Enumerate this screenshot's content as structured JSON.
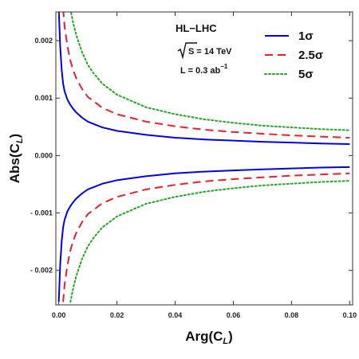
{
  "chart_data": {
    "type": "line",
    "title": "",
    "xlabel": "Arg(C",
    "xlabel_sub": "L",
    "xlabel_close": ")",
    "ylabel": "Abs(C",
    "ylabel_sub": "L",
    "ylabel_close": ")",
    "xlim": [
      -0.001,
      0.101
    ],
    "ylim": [
      -0.0026,
      0.0025
    ],
    "xticks": [
      0.0,
      0.02,
      0.04,
      0.06,
      0.08,
      0.1
    ],
    "xtick_labels": [
      "0.00",
      "0.02",
      "0.04",
      "0.06",
      "0.08",
      "0.10"
    ],
    "yticks": [
      0.002,
      0.001,
      0.0,
      -0.001,
      -0.002
    ],
    "ytick_labels": [
      "0.002",
      "0.001",
      "0.000",
      "- 0.001",
      "- 0.002"
    ],
    "grid": false,
    "legend_position": "top-right",
    "annotation": {
      "title": "HL−LHC",
      "energy_prefix": "S = 14 TeV",
      "lumi": "L = 0.3 ab",
      "lumi_exp": "−1"
    },
    "series": [
      {
        "name": "1σ",
        "color": "#0000ee",
        "dash": "solid",
        "x": [
          0.0,
          0.0005,
          0.001,
          0.0015,
          0.002,
          0.003,
          0.004,
          0.005,
          0.006,
          0.008,
          0.01,
          0.015,
          0.02,
          0.03,
          0.04,
          0.05,
          0.06,
          0.07,
          0.08,
          0.09,
          0.1
        ],
        "upper": [
          0.00255,
          0.0019,
          0.0015,
          0.00125,
          0.00112,
          0.00097,
          0.00088,
          0.00081,
          0.00075,
          0.00066,
          0.00059,
          0.00049,
          0.00043,
          0.00036,
          0.00031,
          0.00028,
          0.00026,
          0.00024,
          0.000225,
          0.00021,
          0.0002
        ],
        "lower": [
          -0.00255,
          -0.0019,
          -0.0015,
          -0.00125,
          -0.00112,
          -0.00097,
          -0.00088,
          -0.00081,
          -0.00075,
          -0.00066,
          -0.00059,
          -0.00049,
          -0.00043,
          -0.00036,
          -0.00031,
          -0.00028,
          -0.00026,
          -0.00024,
          -0.000225,
          -0.00021,
          -0.0002
        ]
      },
      {
        "name": "2.5σ",
        "color": "#e8202a",
        "dash": "dashed",
        "x": [
          0.0015,
          0.002,
          0.003,
          0.004,
          0.005,
          0.006,
          0.008,
          0.01,
          0.015,
          0.02,
          0.03,
          0.04,
          0.05,
          0.06,
          0.07,
          0.08,
          0.09,
          0.1
        ],
        "upper": [
          0.00255,
          0.00225,
          0.0019,
          0.00165,
          0.00148,
          0.00135,
          0.00116,
          0.00102,
          0.00083,
          0.00072,
          0.00059,
          0.00051,
          0.00045,
          0.00041,
          0.00038,
          0.00035,
          0.00033,
          0.00031
        ],
        "lower": [
          -0.00255,
          -0.00225,
          -0.0019,
          -0.00165,
          -0.00148,
          -0.00135,
          -0.00116,
          -0.00102,
          -0.00083,
          -0.00072,
          -0.00059,
          -0.00051,
          -0.00045,
          -0.00041,
          -0.00038,
          -0.00035,
          -0.00033,
          -0.00031
        ]
      },
      {
        "name": "5σ",
        "color": "#22a722",
        "dash": "dotted",
        "x": [
          0.004,
          0.005,
          0.006,
          0.008,
          0.01,
          0.012,
          0.015,
          0.02,
          0.03,
          0.04,
          0.05,
          0.06,
          0.07,
          0.08,
          0.09,
          0.1
        ],
        "upper": [
          0.00255,
          0.0023,
          0.0021,
          0.0018,
          0.00158,
          0.00143,
          0.00125,
          0.00106,
          0.00084,
          0.00072,
          0.00063,
          0.00057,
          0.00052,
          0.00049,
          0.00046,
          0.00044
        ],
        "lower": [
          -0.00255,
          -0.0023,
          -0.0021,
          -0.0018,
          -0.00158,
          -0.00143,
          -0.00125,
          -0.00106,
          -0.00084,
          -0.00072,
          -0.00063,
          -0.00057,
          -0.00052,
          -0.00049,
          -0.00046,
          -0.00044
        ]
      }
    ]
  }
}
